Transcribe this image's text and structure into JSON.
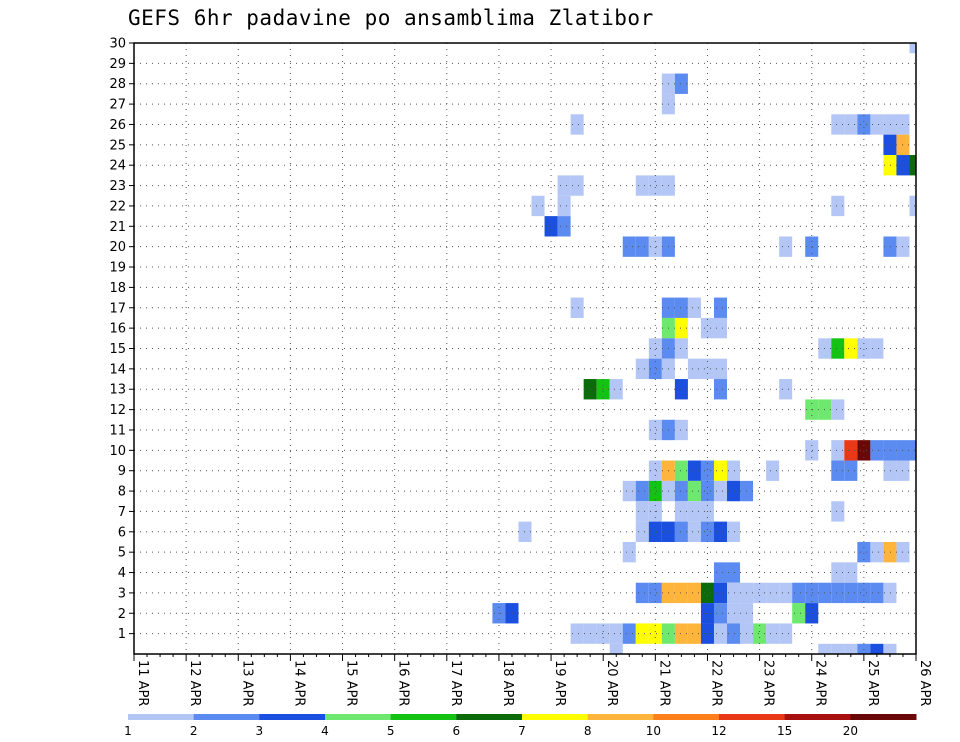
{
  "chart_data": {
    "type": "heatmap",
    "title": "GEFS 6hr padavine po ansamblima Zlatibor",
    "xlabel": "",
    "ylabel": "",
    "x_ticks": [
      "11 APR",
      "12 APR",
      "13 APR",
      "14 APR",
      "15 APR",
      "16 APR",
      "17 APR",
      "18 APR",
      "19 APR",
      "20 APR",
      "21 APR",
      "22 APR",
      "23 APR",
      "24 APR",
      "25 APR",
      "26 APR"
    ],
    "x_range": [
      "11 APR 00Z",
      "26 APR 00Z"
    ],
    "x_step_hours": 6,
    "y_ticks": [
      1,
      2,
      3,
      4,
      5,
      6,
      7,
      8,
      9,
      10,
      11,
      12,
      13,
      14,
      15,
      16,
      17,
      18,
      19,
      20,
      21,
      22,
      23,
      24,
      25,
      26,
      27,
      28,
      29,
      30
    ],
    "y_range": [
      0,
      30
    ],
    "grid": true,
    "legend": {
      "placement": "bottom",
      "labels": [
        "1",
        "2",
        "3",
        "4",
        "5",
        "6",
        "7",
        "8",
        "10",
        "12",
        "15",
        "20"
      ],
      "colors": [
        "#b3c6f5",
        "#5b8af0",
        "#1a4fe0",
        "#6ee86e",
        "#14c214",
        "#0b6b0b",
        "#ffff00",
        "#ffb43c",
        "#ff7f1a",
        "#e83818",
        "#a81010",
        "#6a0808"
      ]
    },
    "series": [
      {
        "y": 30,
        "cells": [
          [
            60,
            1
          ],
          [
            67,
            1
          ],
          [
            78,
            8
          ],
          [
            79,
            4
          ]
        ]
      },
      {
        "y": 29,
        "cells": [
          [
            85,
            2
          ]
        ]
      },
      {
        "y": 28,
        "cells": [
          [
            41,
            1
          ],
          [
            42,
            2
          ],
          [
            79,
            1
          ],
          [
            80,
            1
          ],
          [
            81,
            2
          ]
        ]
      },
      {
        "y": 27,
        "cells": [
          [
            41,
            1
          ],
          [
            64,
            2
          ],
          [
            65,
            4
          ]
        ]
      },
      {
        "y": 26,
        "cells": [
          [
            34,
            1
          ],
          [
            54,
            1
          ],
          [
            55,
            1
          ],
          [
            56,
            2
          ],
          [
            57,
            1
          ],
          [
            58,
            1
          ],
          [
            59,
            1
          ]
        ]
      },
      {
        "y": 25,
        "cells": [
          [
            58,
            3
          ],
          [
            59,
            8
          ],
          [
            74,
            5
          ],
          [
            75,
            8
          ]
        ]
      },
      {
        "y": 24,
        "cells": [
          [
            58,
            7
          ],
          [
            59,
            3
          ],
          [
            60,
            6
          ],
          [
            61,
            2
          ],
          [
            62,
            2
          ],
          [
            80,
            2
          ],
          [
            81,
            5
          ],
          [
            82,
            3
          ],
          [
            83,
            2
          ],
          [
            84,
            2
          ],
          [
            86,
            2
          ],
          [
            87,
            1
          ]
        ]
      },
      {
        "y": 23,
        "cells": [
          [
            33,
            1
          ],
          [
            34,
            1
          ],
          [
            39,
            1
          ],
          [
            40,
            1
          ],
          [
            41,
            1
          ],
          [
            83,
            1
          ],
          [
            84,
            4
          ],
          [
            85,
            1
          ]
        ]
      },
      {
        "y": 22,
        "cells": [
          [
            31,
            1
          ],
          [
            33,
            1
          ],
          [
            54,
            1
          ],
          [
            60,
            1
          ],
          [
            82,
            3
          ],
          [
            83,
            2
          ],
          [
            87,
            1
          ]
        ]
      },
      {
        "y": 21,
        "cells": [
          [
            32,
            3
          ],
          [
            33,
            2
          ],
          [
            61,
            2
          ],
          [
            86,
            3
          ]
        ]
      },
      {
        "y": 20,
        "cells": [
          [
            38,
            2
          ],
          [
            39,
            2
          ],
          [
            40,
            1
          ],
          [
            41,
            2
          ],
          [
            50,
            1
          ],
          [
            52,
            2
          ],
          [
            58,
            2
          ],
          [
            59,
            1
          ],
          [
            76,
            2
          ]
        ]
      },
      {
        "y": 19,
        "cells": [
          [
            75,
            2
          ],
          [
            76,
            2
          ]
        ]
      },
      {
        "y": 18,
        "cells": [
          [
            75,
            5
          ],
          [
            76,
            2
          ]
        ]
      },
      {
        "y": 17,
        "cells": [
          [
            34,
            1
          ],
          [
            41,
            2
          ],
          [
            42,
            2
          ],
          [
            43,
            1
          ],
          [
            45,
            2
          ],
          [
            64,
            1
          ],
          [
            65,
            1
          ],
          [
            67,
            1
          ],
          [
            75,
            4
          ],
          [
            86,
            4
          ],
          [
            87,
            11
          ]
        ]
      },
      {
        "y": 16,
        "cells": [
          [
            41,
            4
          ],
          [
            42,
            7
          ],
          [
            44,
            1
          ],
          [
            45,
            1
          ],
          [
            77,
            2
          ],
          [
            78,
            1
          ],
          [
            79,
            3
          ]
        ]
      },
      {
        "y": 15,
        "cells": [
          [
            40,
            1
          ],
          [
            41,
            2
          ],
          [
            42,
            1
          ],
          [
            53,
            1
          ],
          [
            54,
            5
          ],
          [
            55,
            7
          ],
          [
            56,
            1
          ],
          [
            57,
            1
          ]
        ]
      },
      {
        "y": 14,
        "cells": [
          [
            39,
            1
          ],
          [
            40,
            2
          ],
          [
            41,
            1
          ],
          [
            43,
            1
          ],
          [
            44,
            1
          ],
          [
            45,
            1
          ],
          [
            61,
            2
          ],
          [
            62,
            2
          ],
          [
            63,
            2
          ]
        ]
      },
      {
        "y": 13,
        "cells": [
          [
            35,
            6
          ],
          [
            36,
            5
          ],
          [
            37,
            1
          ],
          [
            42,
            3
          ],
          [
            45,
            2
          ],
          [
            50,
            1
          ],
          [
            64,
            1
          ],
          [
            65,
            3
          ],
          [
            69,
            1
          ],
          [
            70,
            2
          ],
          [
            71,
            1
          ],
          [
            72,
            2
          ],
          [
            73,
            1
          ],
          [
            74,
            1
          ],
          [
            75,
            8
          ],
          [
            76,
            2
          ],
          [
            77,
            4
          ],
          [
            81,
            1
          ],
          [
            82,
            2
          ],
          [
            83,
            7
          ],
          [
            84,
            5
          ]
        ]
      },
      {
        "y": 12,
        "cells": [
          [
            52,
            4
          ],
          [
            53,
            4
          ],
          [
            54,
            1
          ],
          [
            68,
            1
          ]
        ]
      },
      {
        "y": 11,
        "cells": [
          [
            40,
            1
          ],
          [
            41,
            2
          ],
          [
            42,
            1
          ],
          [
            69,
            1
          ],
          [
            70,
            1
          ],
          [
            71,
            2
          ],
          [
            72,
            8
          ],
          [
            73,
            7
          ],
          [
            82,
            1
          ],
          [
            86,
            2
          ],
          [
            87,
            2
          ]
        ]
      },
      {
        "y": 10,
        "cells": [
          [
            52,
            1
          ],
          [
            54,
            1
          ],
          [
            55,
            10
          ],
          [
            56,
            12
          ],
          [
            57,
            2
          ],
          [
            58,
            2
          ],
          [
            59,
            2
          ],
          [
            60,
            2
          ],
          [
            61,
            1
          ],
          [
            77,
            1
          ],
          [
            82,
            2
          ]
        ]
      },
      {
        "y": 9,
        "cells": [
          [
            40,
            1
          ],
          [
            41,
            8
          ],
          [
            42,
            4
          ],
          [
            43,
            3
          ],
          [
            44,
            2
          ],
          [
            45,
            7
          ],
          [
            46,
            1
          ],
          [
            49,
            1
          ],
          [
            54,
            2
          ],
          [
            55,
            2
          ],
          [
            58,
            1
          ],
          [
            59,
            1
          ],
          [
            71,
            4
          ],
          [
            72,
            1
          ],
          [
            74,
            1
          ],
          [
            82,
            1
          ]
        ]
      },
      {
        "y": 8,
        "cells": [
          [
            38,
            1
          ],
          [
            39,
            2
          ],
          [
            40,
            5
          ],
          [
            41,
            1
          ],
          [
            42,
            2
          ],
          [
            43,
            4
          ],
          [
            44,
            2
          ],
          [
            45,
            1
          ],
          [
            46,
            3
          ],
          [
            47,
            2
          ]
        ]
      },
      {
        "y": 7,
        "cells": [
          [
            39,
            1
          ],
          [
            40,
            1
          ],
          [
            42,
            1
          ],
          [
            43,
            1
          ],
          [
            44,
            1
          ],
          [
            54,
            1
          ],
          [
            65,
            5
          ],
          [
            66,
            8
          ],
          [
            67,
            1
          ],
          [
            68,
            5
          ],
          [
            69,
            3
          ],
          [
            71,
            1
          ],
          [
            80,
            2
          ],
          [
            81,
            6
          ],
          [
            82,
            2
          ]
        ]
      },
      {
        "y": 6,
        "cells": [
          [
            30,
            1
          ],
          [
            39,
            1
          ],
          [
            40,
            3
          ],
          [
            41,
            3
          ],
          [
            42,
            2
          ],
          [
            43,
            1
          ],
          [
            44,
            2
          ],
          [
            45,
            3
          ],
          [
            46,
            1
          ]
        ]
      },
      {
        "y": 5,
        "cells": [
          [
            38,
            1
          ],
          [
            56,
            2
          ],
          [
            57,
            1
          ],
          [
            58,
            8
          ],
          [
            59,
            1
          ],
          [
            65,
            1
          ],
          [
            68,
            1
          ],
          [
            77,
            1
          ],
          [
            79,
            2
          ],
          [
            80,
            1
          ]
        ]
      },
      {
        "y": 4,
        "cells": [
          [
            45,
            2
          ],
          [
            46,
            2
          ],
          [
            54,
            1
          ],
          [
            55,
            1
          ],
          [
            68,
            1
          ]
        ]
      },
      {
        "y": 3,
        "cells": [
          [
            39,
            2
          ],
          [
            40,
            2
          ],
          [
            41,
            8
          ],
          [
            42,
            8
          ],
          [
            43,
            8
          ],
          [
            44,
            6
          ],
          [
            45,
            3
          ],
          [
            46,
            1
          ],
          [
            47,
            1
          ],
          [
            48,
            1
          ],
          [
            49,
            1
          ],
          [
            50,
            1
          ],
          [
            51,
            2
          ],
          [
            52,
            2
          ],
          [
            53,
            2
          ],
          [
            54,
            2
          ],
          [
            55,
            2
          ],
          [
            56,
            2
          ],
          [
            57,
            2
          ],
          [
            58,
            1
          ]
        ]
      },
      {
        "y": 2,
        "cells": [
          [
            28,
            2
          ],
          [
            29,
            3
          ],
          [
            44,
            3
          ],
          [
            45,
            2
          ],
          [
            46,
            1
          ],
          [
            47,
            1
          ],
          [
            51,
            4
          ],
          [
            52,
            3
          ]
        ]
      },
      {
        "y": 1,
        "cells": [
          [
            34,
            1
          ],
          [
            35,
            1
          ],
          [
            36,
            1
          ],
          [
            37,
            1
          ],
          [
            38,
            2
          ],
          [
            39,
            7
          ],
          [
            40,
            7
          ],
          [
            41,
            4
          ],
          [
            42,
            8
          ],
          [
            43,
            8
          ],
          [
            44,
            3
          ],
          [
            45,
            1
          ],
          [
            46,
            2
          ],
          [
            47,
            1
          ],
          [
            48,
            4
          ],
          [
            49,
            1
          ],
          [
            50,
            1
          ],
          [
            72,
            2
          ],
          [
            83,
            1
          ]
        ]
      },
      {
        "y": 0,
        "cells": [
          [
            37,
            1
          ],
          [
            53,
            1
          ],
          [
            54,
            1
          ],
          [
            55,
            1
          ],
          [
            56,
            2
          ],
          [
            57,
            3
          ],
          [
            58,
            1
          ],
          [
            83,
            1
          ],
          [
            84,
            7
          ],
          [
            86,
            2
          ]
        ]
      }
    ]
  }
}
